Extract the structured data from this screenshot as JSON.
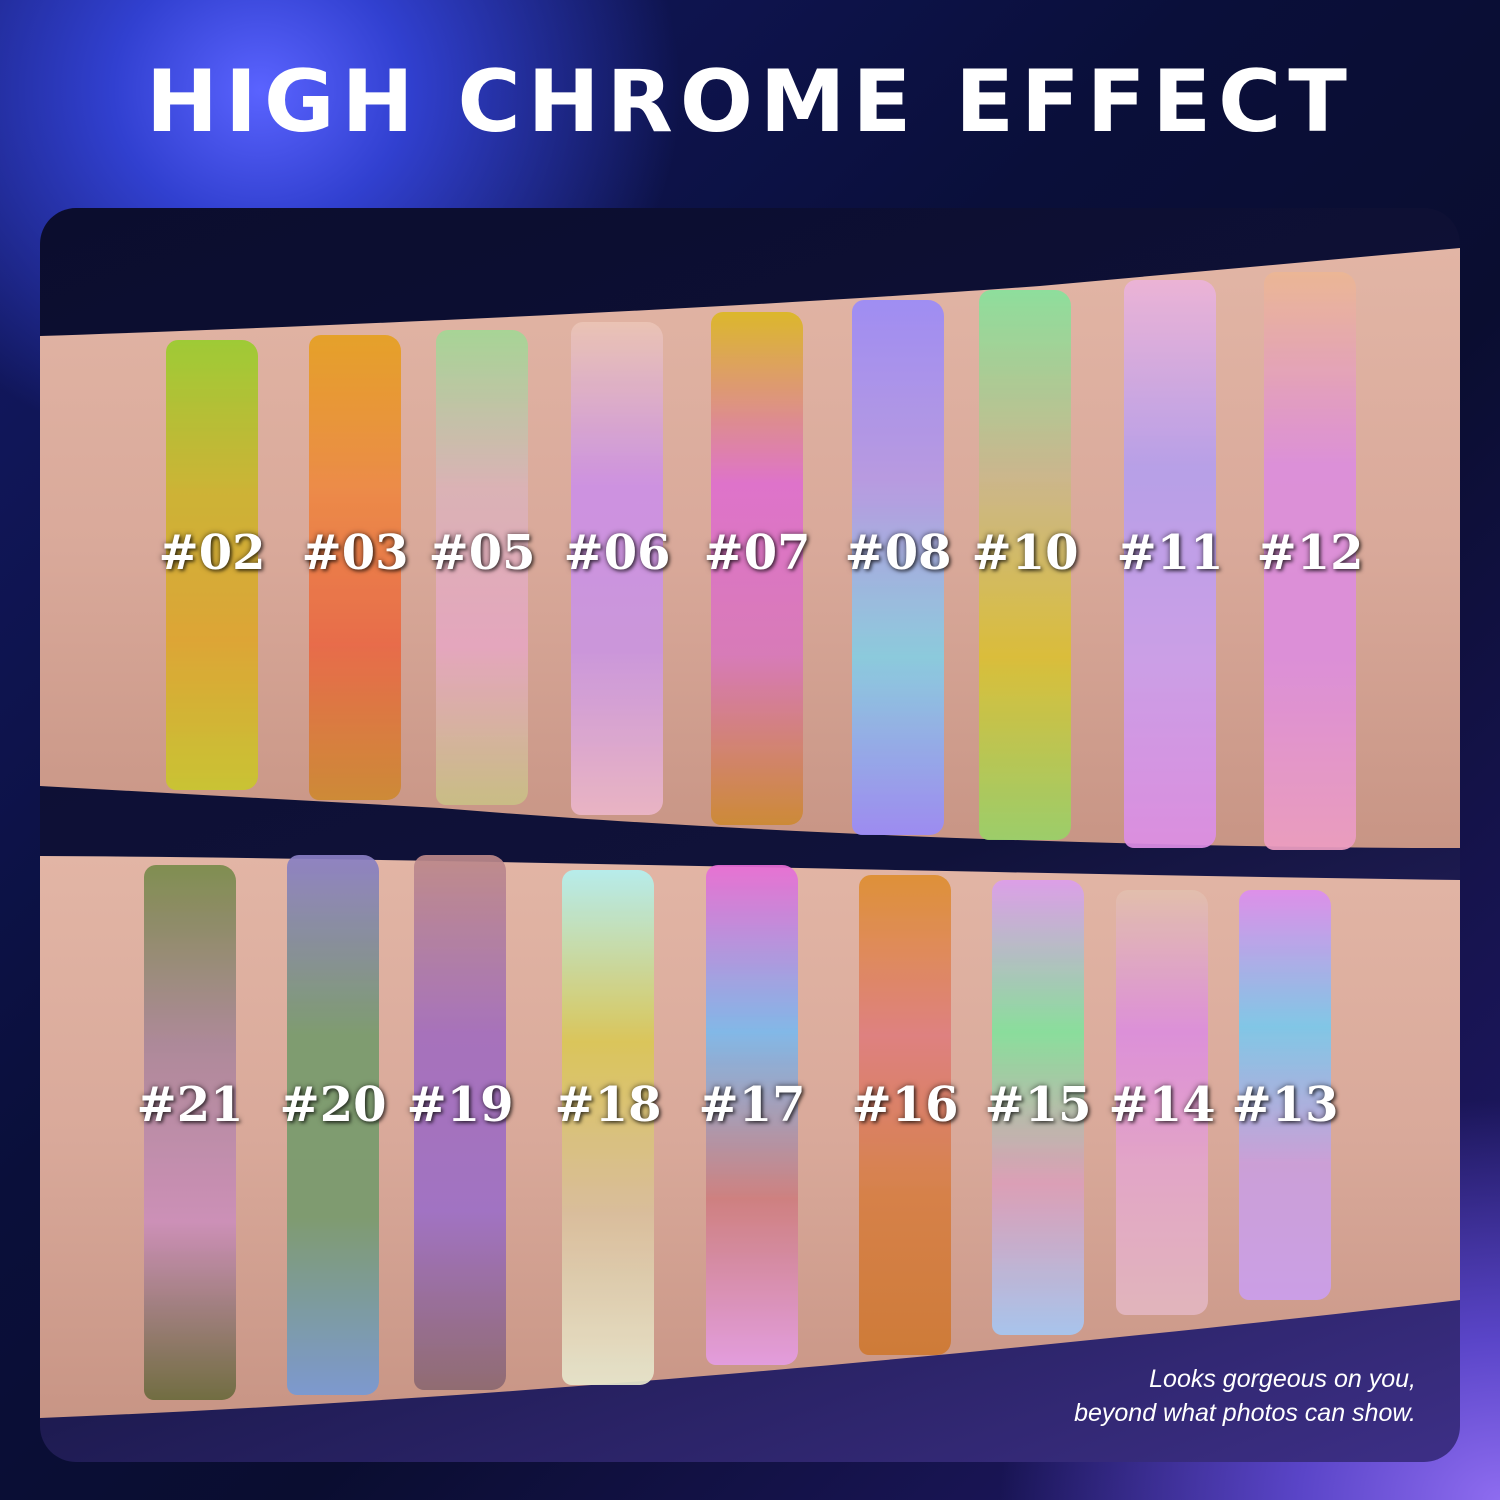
{
  "title": "HIGH CHROME EFFECT",
  "tagline": [
    "Looks gorgeous on you,",
    "beyond what photos can show."
  ],
  "skin_color": "#d9a99a",
  "top_row": [
    {
      "label": "#02",
      "colors": [
        "#9ccb3a",
        "#c9b43a",
        "#d9a63a",
        "#c8c63a"
      ]
    },
    {
      "label": "#03",
      "colors": [
        "#e0a12c",
        "#e68a4a",
        "#e06a4a",
        "#c88a3a"
      ]
    },
    {
      "label": "#05",
      "colors": [
        "#a6d69a",
        "#d8b4b8",
        "#e2a8c0",
        "#c8c08a"
      ]
    },
    {
      "label": "#06",
      "colors": [
        "#e8c6b8",
        "#c892e0",
        "#c898dc",
        "#e8b8c8"
      ]
    },
    {
      "label": "#07",
      "colors": [
        "#d8b830",
        "#d872c8",
        "#d27ab8",
        "#c88a3a"
      ]
    },
    {
      "label": "#08",
      "colors": [
        "#9a8cf0",
        "#b49ae0",
        "#8ccde0",
        "#9a8cf0"
      ]
    },
    {
      "label": "#10",
      "colors": [
        "#8ee0a0",
        "#c8b890",
        "#d8c040",
        "#9cd070"
      ]
    },
    {
      "label": "#11",
      "colors": [
        "#e8b4d8",
        "#b4a0e8",
        "#c8a0e8",
        "#d890e0"
      ]
    },
    {
      "label": "#12",
      "colors": [
        "#e8b898",
        "#d890d8",
        "#d890d8",
        "#e8a0c0"
      ]
    }
  ],
  "bottom_row": [
    {
      "label": "#21",
      "colors": [
        "#7a8a50",
        "#a88898",
        "#c890b8",
        "#6a6a40"
      ]
    },
    {
      "label": "#20",
      "colors": [
        "#8a80c0",
        "#7a9a70",
        "#7a9a70",
        "#7a9ad0"
      ]
    },
    {
      "label": "#19",
      "colors": [
        "#b88a8a",
        "#a070b8",
        "#9a70c0",
        "#8a6a70"
      ]
    },
    {
      "label": "#18",
      "colors": [
        "#b8f0f0",
        "#d8c860",
        "#d8c0a0",
        "#e8e8d0"
      ]
    },
    {
      "label": "#17",
      "colors": [
        "#e070d0",
        "#80b8e8",
        "#c88080",
        "#e0a0e0"
      ]
    },
    {
      "label": "#16",
      "colors": [
        "#d8903a",
        "#d88080",
        "#d0804a",
        "#c87a3a"
      ]
    },
    {
      "label": "#15",
      "colors": [
        "#d8a0e8",
        "#8ae0a0",
        "#d8a0b8",
        "#a8c8f0"
      ]
    },
    {
      "label": "#14",
      "colors": [
        "#e0c0b0",
        "#d890d8",
        "#e0a8c8",
        "#e0b8c0"
      ]
    },
    {
      "label": "#13",
      "colors": [
        "#d890e8",
        "#80c8e8",
        "#c8a0d8",
        "#c8a0e8"
      ]
    }
  ]
}
